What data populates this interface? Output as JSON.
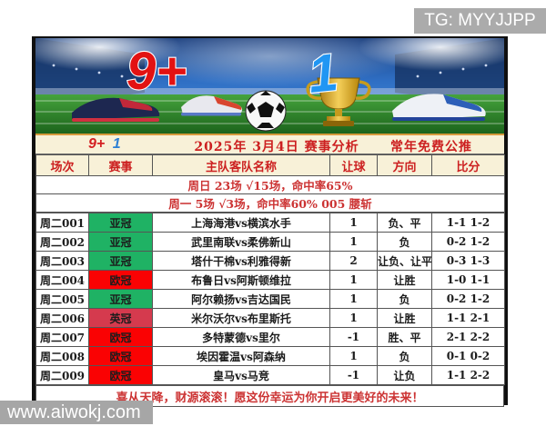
{
  "watermarks": {
    "tg": "TG: MYYJJPP",
    "site": "www.aiwokj.com"
  },
  "banner": {
    "nine_plus": "9+",
    "one": "1"
  },
  "title_row": {
    "brand_nine": "9+",
    "brand_one": "1",
    "title": "2025年 3月4日 赛事分析",
    "subtitle": "常年免费公推"
  },
  "columns": [
    "场次",
    "赛事",
    "主队客队名称",
    "让球",
    "方向",
    "比分"
  ],
  "stats": [
    "周日 23场 √15场，命中率65%",
    "周一 5场 √3场，命中率60% 005 腰斩"
  ],
  "rows": [
    {
      "match": "周二001",
      "league": "亚冠",
      "league_color": "#1fb264",
      "teams": "上海海港vs横滨水手",
      "handicap": "1",
      "direction": "负、平",
      "score": "1-1 1-2"
    },
    {
      "match": "周二002",
      "league": "亚冠",
      "league_color": "#1fb264",
      "teams": "武里南联vs柔佛新山",
      "handicap": "1",
      "direction": "负",
      "score": "0-2 1-2"
    },
    {
      "match": "周二003",
      "league": "亚冠",
      "league_color": "#1fb264",
      "teams": "塔什干棉vs利雅得新",
      "handicap": "2",
      "direction": "让负、让平",
      "score": "0-3 1-3"
    },
    {
      "match": "周二004",
      "league": "欧冠",
      "league_color": "#fa0203",
      "teams": "布鲁日vs阿斯顿维拉",
      "handicap": "1",
      "direction": "让胜",
      "score": "1-0 1-1"
    },
    {
      "match": "周二005",
      "league": "亚冠",
      "league_color": "#1fb264",
      "teams": "阿尔赖扬vs吉达国民",
      "handicap": "1",
      "direction": "负",
      "score": "0-2 1-2"
    },
    {
      "match": "周二006",
      "league": "英冠",
      "league_color": "#d53a4e",
      "teams": "米尔沃尔vs布里斯托",
      "handicap": "1",
      "direction": "让胜",
      "score": "1-1 2-1"
    },
    {
      "match": "周二007",
      "league": "欧冠",
      "league_color": "#fa0203",
      "teams": "多特蒙德vs里尔",
      "handicap": "-1",
      "direction": "胜、平",
      "score": "2-1 2-2"
    },
    {
      "match": "周二008",
      "league": "欧冠",
      "league_color": "#fa0203",
      "teams": "埃因霍温vs阿森纳",
      "handicap": "1",
      "direction": "负",
      "score": "0-1 0-2"
    },
    {
      "match": "周二009",
      "league": "欧冠",
      "league_color": "#fa0203",
      "teams": "皇马vs马竞",
      "handicap": "-1",
      "direction": "让负",
      "score": "1-1 2-2"
    }
  ],
  "footer_message": "喜从天降，财源滚滚！愿这份幸运为你开启更美好的未来！",
  "colors": {
    "cream_header": "#f8f1d8",
    "accent_red": "#cc2020",
    "green_badge": "#1fb264",
    "red_badge": "#fa0203",
    "crimson_badge": "#d53a4e",
    "banner_nine_red": "#e31212",
    "banner_one_blue": "#2196f3"
  }
}
